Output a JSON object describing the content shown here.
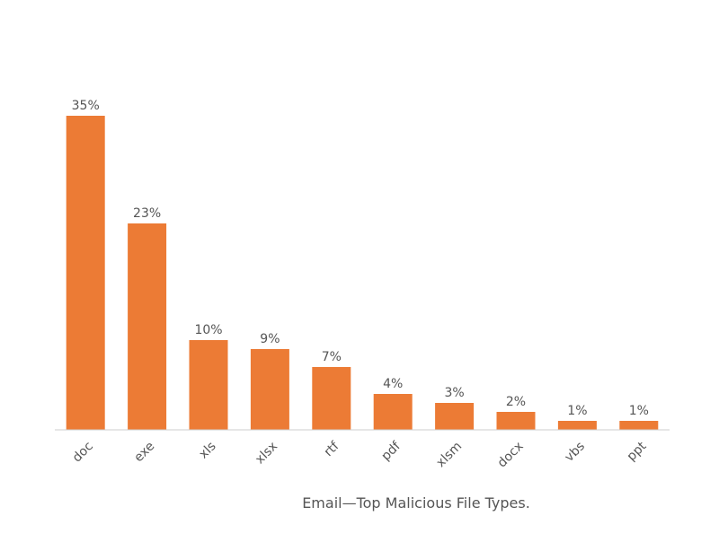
{
  "chart_data": {
    "type": "bar",
    "title": "Email—Top Malicious File Types.",
    "categories": [
      "doc",
      "exe",
      "xls",
      "xlsx",
      "rtf",
      "pdf",
      "xlsm",
      "docx",
      "vbs",
      "ppt"
    ],
    "values": [
      35,
      23,
      10,
      9,
      7,
      4,
      3,
      2,
      1,
      1
    ],
    "value_labels": [
      "35%",
      "23%",
      "10%",
      "9%",
      "7%",
      "4%",
      "3%",
      "2%",
      "1%",
      "1%"
    ],
    "color": "#ec7b35"
  }
}
